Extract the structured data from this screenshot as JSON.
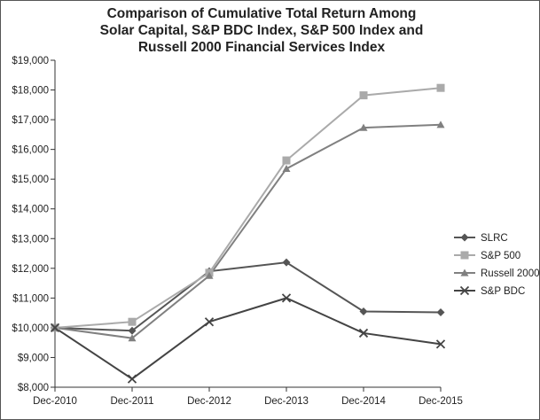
{
  "chart_data": {
    "type": "line",
    "title_lines": [
      "Comparison of Cumulative Total Return Among",
      "Solar Capital, S&P BDC Index, S&P 500 Index and",
      "Russell 2000 Financial Services Index"
    ],
    "categories": [
      "Dec-2010",
      "Dec-2011",
      "Dec-2012",
      "Dec-2013",
      "Dec-2014",
      "Dec-2015"
    ],
    "y_ticks": [
      "$8,000",
      "$9,000",
      "$10,000",
      "$11,000",
      "$12,000",
      "$13,000",
      "$14,000",
      "$15,000",
      "$16,000",
      "$17,000",
      "$18,000",
      "$19,000"
    ],
    "ylim": [
      8000,
      19000
    ],
    "grid": false,
    "legend_position": "right",
    "series": [
      {
        "name": "SLRC",
        "marker": "diamond",
        "color": "#555555",
        "values": [
          10000,
          9900,
          11900,
          12200,
          10550,
          10520
        ]
      },
      {
        "name": "S&P 500",
        "marker": "square",
        "color": "#aaaaaa",
        "values": [
          10000,
          10200,
          11850,
          15630,
          17820,
          18070
        ]
      },
      {
        "name": "Russell 2000",
        "marker": "triangle",
        "color": "#808080",
        "values": [
          10000,
          9650,
          11750,
          15350,
          16730,
          16830
        ]
      },
      {
        "name": "S&P BDC",
        "marker": "x",
        "color": "#444444",
        "values": [
          10000,
          8280,
          10200,
          11000,
          9820,
          9450
        ]
      }
    ]
  }
}
